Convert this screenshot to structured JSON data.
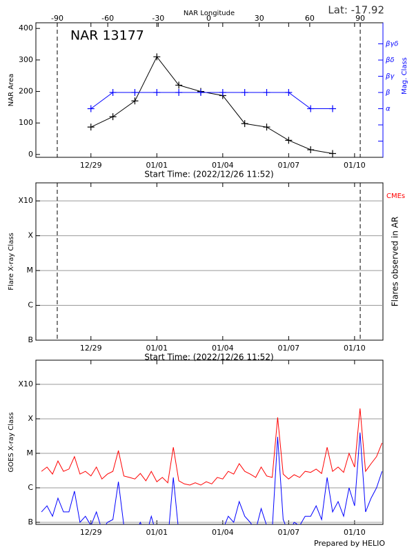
{
  "chart_data": [
    {
      "type": "line",
      "title": "NAR 13177",
      "annotation": "Lat: -17.92",
      "x2label": "NAR Longitude",
      "xlabel": "Start Time: (2022/12/26 11:52)",
      "ylabel": "NAR Area",
      "y2label": "Mag. Class",
      "xlim": [
        "12/26 11:52",
        "01/11 07:00"
      ],
      "xticks": [
        "12/29",
        "01/01",
        "01/04",
        "01/07",
        "01/10"
      ],
      "x2lim": [
        -102.7,
        103.5
      ],
      "x2ticks": [
        -90,
        -60,
        -30,
        0,
        30,
        60,
        90
      ],
      "ylim": [
        -9,
        418
      ],
      "yticks": [
        0,
        100,
        200,
        300,
        400
      ],
      "y2lim": [
        -1,
        7.3
      ],
      "y2ticks": [
        0,
        1,
        {
          "value": 2,
          "label": "α"
        },
        {
          "value": 3,
          "label": "β"
        },
        {
          "value": 4,
          "label": "βγ"
        },
        {
          "value": 5,
          "label": "βδ"
        },
        {
          "value": 6,
          "label": "βγδ"
        }
      ],
      "x": [
        "12/29",
        "12/30",
        "12/31",
        "01/01",
        "01/02",
        "01/03",
        "01/04",
        "01/05",
        "01/06",
        "01/07",
        "01/08",
        "01/09"
      ],
      "series": [
        {
          "color": "#000000",
          "values": [
            87,
            120,
            170,
            310,
            220,
            200,
            187,
            98,
            87,
            45,
            15,
            3
          ]
        },
        {
          "color": "#0000ff",
          "axis": "y2",
          "values": [
            2,
            3,
            3,
            3,
            3,
            3,
            3,
            3,
            3,
            3,
            2,
            2
          ]
        }
      ]
    },
    {
      "type": "line",
      "xlabel": "Start Time: (2022/12/26 11:52)",
      "ylabel": "Flare X-ray Class",
      "y2label": "Flares observed in AR",
      "annotation": "CMEs",
      "xlim": [
        "12/26 11:52",
        "01/11 07:00"
      ],
      "xticks": [
        "12/29",
        "01/01",
        "01/04",
        "01/07",
        "01/10"
      ],
      "ylim": [
        1e-07,
        0.0033
      ],
      "log_scale": true,
      "grid": true,
      "yticks": [
        {
          "value": 1e-07,
          "label": "B"
        },
        {
          "value": 1e-06,
          "label": "C"
        },
        {
          "value": 1e-05,
          "label": "M"
        },
        {
          "value": 0.0001,
          "label": "X"
        },
        {
          "value": 0.001,
          "label": "X10"
        }
      ]
    },
    {
      "type": "line",
      "ylabel": "GOES X-ray Class",
      "footer": "Prepared by HELIO",
      "xlim": [
        "12/26 11:52",
        "01/11 07:00"
      ],
      "xticks": [
        "12/29",
        "01/01",
        "01/04",
        "01/07",
        "01/10"
      ],
      "ylim": [
        8.7e-08,
        0.005
      ],
      "log_scale": true,
      "grid": true,
      "yticks": [
        {
          "value": 1e-07,
          "label": "B"
        },
        {
          "value": 1e-06,
          "label": "C"
        },
        {
          "value": 1e-05,
          "label": "M"
        },
        {
          "value": 0.0001,
          "label": "X"
        },
        {
          "value": 0.001,
          "label": "X10"
        }
      ],
      "x": [
        "12/26 18:00",
        "12/27 00:00",
        "12/27 06:00",
        "12/27 12:00",
        "12/27 18:00",
        "12/28 00:00",
        "12/28 06:00",
        "12/28 12:00",
        "12/28 18:00",
        "12/29 00:00",
        "12/29 06:00",
        "12/29 12:00",
        "12/29 18:00",
        "12/30 00:00",
        "12/30 06:00",
        "12/30 12:00",
        "12/30 18:00",
        "12/31 00:00",
        "12/31 06:00",
        "12/31 12:00",
        "12/31 18:00",
        "01/01 00:00",
        "01/01 06:00",
        "01/01 12:00",
        "01/01 18:00",
        "01/02 00:00",
        "01/02 06:00",
        "01/02 12:00",
        "01/02 18:00",
        "01/03 00:00",
        "01/03 06:00",
        "01/03 12:00",
        "01/03 18:00",
        "01/04 00:00",
        "01/04 06:00",
        "01/04 12:00",
        "01/04 18:00",
        "01/05 00:00",
        "01/05 06:00",
        "01/05 12:00",
        "01/05 18:00",
        "01/06 00:00",
        "01/06 06:00",
        "01/06 12:00",
        "01/06 18:00",
        "01/07 00:00",
        "01/07 06:00",
        "01/07 12:00",
        "01/07 18:00",
        "01/08 00:00",
        "01/08 06:00",
        "01/08 12:00",
        "01/08 18:00",
        "01/09 00:00",
        "01/09 06:00",
        "01/09 12:00",
        "01/09 18:00",
        "01/10 00:00",
        "01/10 06:00",
        "01/10 12:00",
        "01/10 18:00",
        "01/11 00:00",
        "01/11 06:00"
      ],
      "series": [
        {
          "color": "#ff0000",
          "values": [
            3e-06,
            4e-06,
            2.5e-06,
            6e-06,
            3e-06,
            3.5e-06,
            8e-06,
            2.5e-06,
            3e-06,
            2.2e-06,
            4e-06,
            1.8e-06,
            2.5e-06,
            3e-06,
            1.2e-05,
            2.2e-06,
            2e-06,
            1.8e-06,
            2.6e-06,
            1.6e-06,
            3e-06,
            1.5e-06,
            2e-06,
            1.4e-06,
            1.5e-05,
            1.6e-06,
            1.3e-06,
            1.2e-06,
            1.4e-06,
            1.2e-06,
            1.5e-06,
            1.3e-06,
            2e-06,
            1.8e-06,
            3e-06,
            2.5e-06,
            5e-06,
            3e-06,
            2.5e-06,
            2e-06,
            4e-06,
            2.2e-06,
            2e-06,
            0.00011,
            2.5e-06,
            1.8e-06,
            2.4e-06,
            2e-06,
            3e-06,
            2.8e-06,
            3.5e-06,
            2.6e-06,
            1.5e-05,
            3e-06,
            4e-06,
            2.8e-06,
            1e-05,
            4e-06,
            0.0002,
            3e-06,
            5e-06,
            8e-06,
            2e-05
          ]
        },
        {
          "color": "#0000ff",
          "values": [
            2e-07,
            3e-07,
            1.5e-07,
            5e-07,
            2e-07,
            2e-07,
            8e-07,
            1e-07,
            1.5e-07,
            8e-08,
            2e-07,
            6e-08,
            1e-07,
            1.2e-07,
            1.5e-06,
            8e-08,
            6e-08,
            5e-08,
            1e-07,
            4e-08,
            1.5e-07,
            4e-08,
            6e-08,
            3e-08,
            2e-06,
            5e-08,
            3e-08,
            2e-08,
            4e-08,
            2e-08,
            5e-08,
            3e-08,
            8e-08,
            6e-08,
            1.5e-07,
            1e-07,
            4e-07,
            1.5e-07,
            1e-07,
            6e-08,
            2.5e-07,
            8e-08,
            6e-08,
            3e-05,
            1.2e-07,
            5e-08,
            1e-07,
            8e-08,
            1.5e-07,
            1.5e-07,
            3e-07,
            1.2e-07,
            2e-06,
            2e-07,
            4e-07,
            1.5e-07,
            1e-06,
            3e-07,
            4e-05,
            2e-07,
            5e-07,
            1e-06,
            3e-06
          ]
        }
      ]
    }
  ]
}
